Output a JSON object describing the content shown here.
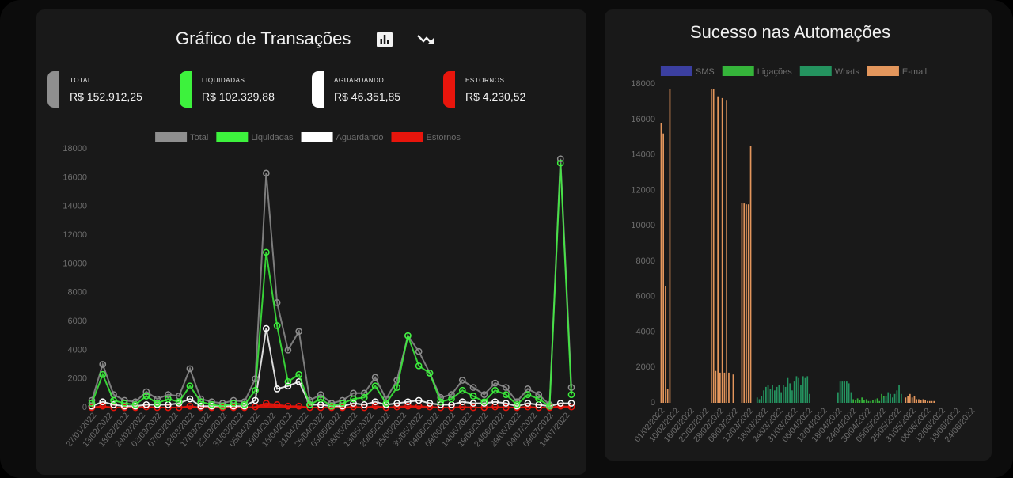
{
  "left_panel": {
    "title": "Gráfico de Transações",
    "stats": [
      {
        "label": "TOTAL",
        "value": "R$ 152.912,25",
        "color": "#8f8f8f"
      },
      {
        "label": "LIQUIDADAS",
        "value": "R$ 102.329,88",
        "color": "#3df23d"
      },
      {
        "label": "AGUARDANDO",
        "value": "R$ 46.351,85",
        "color": "#ffffff"
      },
      {
        "label": "ESTORNOS",
        "value": "R$ 4.230,52",
        "color": "#e8150c"
      }
    ]
  },
  "right_panel": {
    "title": "Sucesso nas Automações"
  },
  "chart_data": [
    {
      "type": "line",
      "legend": "top",
      "grid": false,
      "ylim": [
        0,
        18000
      ],
      "yticks": [
        0,
        2000,
        4000,
        6000,
        8000,
        10000,
        12000,
        14000,
        16000,
        18000
      ],
      "xtick_labels": [
        "27/01/2022",
        "13/02/2022",
        "18/02/2022",
        "24/02/2022",
        "02/03/2022",
        "07/03/2022",
        "12/03/2022",
        "17/03/2022",
        "22/03/2022",
        "31/03/2022",
        "05/04/2022",
        "10/04/2022",
        "16/04/2022",
        "21/04/2022",
        "26/04/2022",
        "03/05/2022",
        "08/05/2022",
        "13/05/2022",
        "20/05/2022",
        "25/05/2022",
        "30/05/2022",
        "04/06/2022",
        "09/06/2022",
        "14/06/2022",
        "19/06/2022",
        "24/06/2022",
        "29/06/2022",
        "04/07/2022",
        "09/07/2022",
        "14/07/2022"
      ],
      "series": [
        {
          "name": "Total",
          "color": "#8f8f8f",
          "values": [
            500,
            3000,
            900,
            500,
            400,
            1100,
            600,
            900,
            800,
            2700,
            600,
            400,
            300,
            500,
            400,
            2000,
            16300,
            7300,
            4000,
            5300,
            500,
            900,
            300,
            500,
            1000,
            1000,
            2100,
            600,
            1900,
            5000,
            3900,
            2400,
            700,
            900,
            1900,
            1400,
            900,
            1700,
            1400,
            400,
            1300,
            900,
            200,
            17300,
            1400
          ]
        },
        {
          "name": "Liquidadas",
          "color": "#3df23d",
          "values": [
            300,
            2300,
            500,
            300,
            200,
            800,
            300,
            600,
            400,
            1500,
            400,
            200,
            100,
            300,
            200,
            1200,
            10800,
            5700,
            1800,
            2300,
            200,
            600,
            100,
            300,
            600,
            700,
            1500,
            300,
            1400,
            5000,
            2900,
            2400,
            400,
            600,
            1200,
            800,
            400,
            1200,
            900,
            200,
            900,
            600,
            100,
            17000,
            900
          ]
        },
        {
          "name": "Aguardando",
          "color": "#ffffff",
          "values": [
            100,
            400,
            200,
            100,
            100,
            200,
            200,
            200,
            300,
            600,
            100,
            100,
            100,
            100,
            100,
            500,
            5500,
            1300,
            1500,
            1800,
            200,
            200,
            100,
            100,
            300,
            200,
            400,
            200,
            300,
            400,
            500,
            300,
            200,
            200,
            400,
            300,
            300,
            400,
            300,
            100,
            300,
            200,
            100,
            300,
            300
          ]
        },
        {
          "name": "Estornos",
          "color": "#e8150c",
          "values": [
            0,
            100,
            0,
            0,
            0,
            50,
            0,
            0,
            0,
            100,
            0,
            0,
            0,
            0,
            0,
            50,
            300,
            200,
            100,
            100,
            0,
            0,
            0,
            0,
            50,
            0,
            100,
            0,
            50,
            100,
            100,
            50,
            0,
            0,
            50,
            0,
            0,
            50,
            0,
            0,
            50,
            0,
            0,
            100,
            50
          ]
        }
      ]
    },
    {
      "type": "bar",
      "legend": "top",
      "grid": false,
      "ylim": [
        0,
        18000
      ],
      "yticks": [
        0,
        2000,
        4000,
        6000,
        8000,
        10000,
        12000,
        14000,
        16000,
        18000
      ],
      "xtick_labels": [
        "01/02/2022",
        "10/02/2022",
        "16/02/2022",
        "22/02/2022",
        "28/02/2022",
        "06/03/2022",
        "12/03/2022",
        "18/03/2022",
        "24/03/2022",
        "31/03/2022",
        "06/04/2022",
        "12/04/2022",
        "18/04/2022",
        "24/04/2022",
        "30/04/2022",
        "05/05/2022",
        "25/05/2022",
        "31/05/2022",
        "06/06/2022",
        "12/06/2022",
        "18/06/2022",
        "24/06/2022"
      ],
      "series": [
        {
          "name": "SMS",
          "color": "#3b3fa0",
          "values": []
        },
        {
          "name": "Ligações",
          "color": "#35b43a",
          "values": [
            0,
            0,
            0,
            0,
            0,
            0,
            0,
            0,
            0,
            0,
            0,
            0,
            0,
            0,
            0,
            0,
            0,
            0,
            0,
            0,
            0,
            0,
            0,
            0,
            0,
            0,
            0,
            0,
            0,
            0,
            0,
            0,
            0,
            0,
            0,
            0,
            0,
            0,
            0,
            0,
            0,
            0,
            0,
            0,
            0,
            0,
            0,
            0,
            0,
            0,
            0,
            0,
            0,
            0,
            0,
            0,
            0,
            0,
            0,
            0,
            0,
            0,
            0,
            0,
            0,
            0,
            0,
            0,
            0,
            0,
            0,
            0,
            0,
            0,
            0,
            0,
            0,
            0,
            0,
            0,
            0,
            0,
            0,
            0,
            0,
            0,
            0,
            0,
            200,
            150,
            250,
            150,
            300,
            150,
            200,
            100,
            100,
            150,
            200,
            250,
            100,
            500,
            400,
            100,
            0,
            0,
            0,
            0,
            0,
            0,
            0,
            0,
            0,
            0,
            0,
            0,
            0,
            0,
            0,
            0,
            0,
            0,
            0,
            0,
            0,
            0,
            0,
            0,
            0,
            0,
            0,
            0,
            0,
            0,
            0,
            0,
            0,
            0,
            0,
            0,
            0,
            0,
            0,
            0,
            0
          ]
        },
        {
          "name": "Whats",
          "color": "#24935f",
          "values": [
            0,
            0,
            0,
            0,
            0,
            0,
            0,
            0,
            0,
            0,
            0,
            0,
            0,
            0,
            0,
            0,
            0,
            0,
            0,
            0,
            0,
            0,
            0,
            0,
            0,
            0,
            0,
            0,
            0,
            0,
            0,
            0,
            0,
            0,
            0,
            0,
            0,
            0,
            0,
            0,
            0,
            0,
            0,
            0,
            300,
            200,
            400,
            700,
            900,
            1000,
            800,
            1000,
            700,
            900,
            1000,
            600,
            1000,
            900,
            1400,
            1100,
            700,
            1200,
            1500,
            1400,
            1000,
            1500,
            1400,
            1500,
            500,
            0,
            0,
            0,
            0,
            0,
            0,
            0,
            0,
            0,
            0,
            0,
            0,
            600,
            1200,
            1200,
            1200,
            1200,
            1100,
            600,
            0,
            0,
            0,
            0,
            0,
            0,
            0,
            0,
            0,
            0,
            0,
            0,
            0,
            200,
            300,
            400,
            600,
            500,
            300,
            500,
            700,
            1000,
            500,
            0,
            0,
            0,
            0,
            0,
            0,
            0,
            0,
            0
          ]
        },
        {
          "name": "E-mail",
          "color": "#e3965c",
          "values": [
            15800,
            15200,
            6600,
            800,
            17700,
            0,
            0,
            0,
            0,
            0,
            0,
            0,
            0,
            0,
            0,
            0,
            0,
            0,
            0,
            0,
            0,
            0,
            0,
            17700,
            17700,
            1800,
            17300,
            1700,
            17200,
            1700,
            17100,
            1700,
            0,
            1600,
            0,
            0,
            0,
            11300,
            11250,
            11200,
            11200,
            14500,
            0,
            0,
            0,
            0,
            0,
            0,
            0,
            0,
            0,
            0,
            0,
            0,
            0,
            0,
            0,
            0,
            0,
            0,
            0,
            0,
            0,
            0,
            0,
            0,
            0,
            0,
            0,
            0,
            0,
            0,
            0,
            0,
            0,
            0,
            0,
            0,
            0,
            0,
            0,
            0,
            0,
            0,
            0,
            0,
            0,
            0,
            0,
            0,
            0,
            0,
            0,
            0,
            0,
            0,
            0,
            0,
            0,
            0,
            0,
            0,
            0,
            0,
            0,
            0,
            0,
            0,
            0,
            0,
            0,
            0,
            300,
            400,
            500,
            300,
            400,
            200,
            200,
            150,
            200,
            150,
            100,
            100,
            100,
            100
          ]
        }
      ]
    }
  ]
}
